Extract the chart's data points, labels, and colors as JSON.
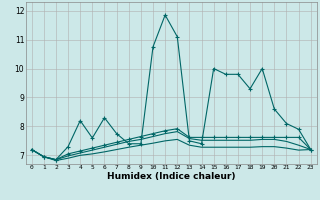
{
  "xlabel": "Humidex (Indice chaleur)",
  "bg_color": "#cce8e8",
  "grid_color": "#b0b0b0",
  "line_color": "#006666",
  "xlim": [
    -0.5,
    23.5
  ],
  "ylim": [
    6.7,
    12.3
  ],
  "xticks": [
    0,
    1,
    2,
    3,
    4,
    5,
    6,
    7,
    8,
    9,
    10,
    11,
    12,
    13,
    14,
    15,
    16,
    17,
    18,
    19,
    20,
    21,
    22,
    23
  ],
  "yticks": [
    7,
    8,
    9,
    10,
    11,
    12
  ],
  "line1_x": [
    0,
    1,
    2,
    3,
    4,
    5,
    6,
    7,
    8,
    9,
    10,
    11,
    12,
    13,
    14,
    15,
    16,
    17,
    18,
    19,
    20,
    21,
    22,
    23
  ],
  "line1_y": [
    7.2,
    6.95,
    6.85,
    7.3,
    8.2,
    7.6,
    8.3,
    7.75,
    7.4,
    7.4,
    10.75,
    11.85,
    11.1,
    7.5,
    7.4,
    10.0,
    9.8,
    9.8,
    9.3,
    10.0,
    8.6,
    8.1,
    7.9,
    7.2
  ],
  "line2_x": [
    0,
    1,
    2,
    3,
    4,
    5,
    6,
    7,
    8,
    9,
    10,
    11,
    12,
    13,
    14,
    15,
    16,
    17,
    18,
    19,
    20,
    21,
    22,
    23
  ],
  "line2_y": [
    7.2,
    6.95,
    6.85,
    7.05,
    7.15,
    7.25,
    7.35,
    7.45,
    7.55,
    7.65,
    7.75,
    7.85,
    7.92,
    7.62,
    7.62,
    7.62,
    7.62,
    7.62,
    7.62,
    7.62,
    7.62,
    7.62,
    7.62,
    7.2
  ],
  "line3_x": [
    0,
    1,
    2,
    3,
    4,
    5,
    6,
    7,
    8,
    9,
    10,
    11,
    12,
    13,
    14,
    15,
    16,
    17,
    18,
    19,
    20,
    21,
    22,
    23
  ],
  "line3_y": [
    7.2,
    6.95,
    6.85,
    6.98,
    7.08,
    7.18,
    7.28,
    7.38,
    7.48,
    7.55,
    7.65,
    7.75,
    7.82,
    7.58,
    7.52,
    7.52,
    7.52,
    7.52,
    7.52,
    7.55,
    7.55,
    7.48,
    7.35,
    7.2
  ],
  "line4_x": [
    0,
    1,
    2,
    3,
    4,
    5,
    6,
    7,
    8,
    9,
    10,
    11,
    12,
    13,
    14,
    15,
    16,
    17,
    18,
    19,
    20,
    21,
    22,
    23
  ],
  "line4_y": [
    7.2,
    6.95,
    6.82,
    6.9,
    7.0,
    7.05,
    7.12,
    7.2,
    7.28,
    7.35,
    7.42,
    7.5,
    7.55,
    7.35,
    7.28,
    7.28,
    7.28,
    7.28,
    7.28,
    7.3,
    7.3,
    7.25,
    7.18,
    7.2
  ]
}
